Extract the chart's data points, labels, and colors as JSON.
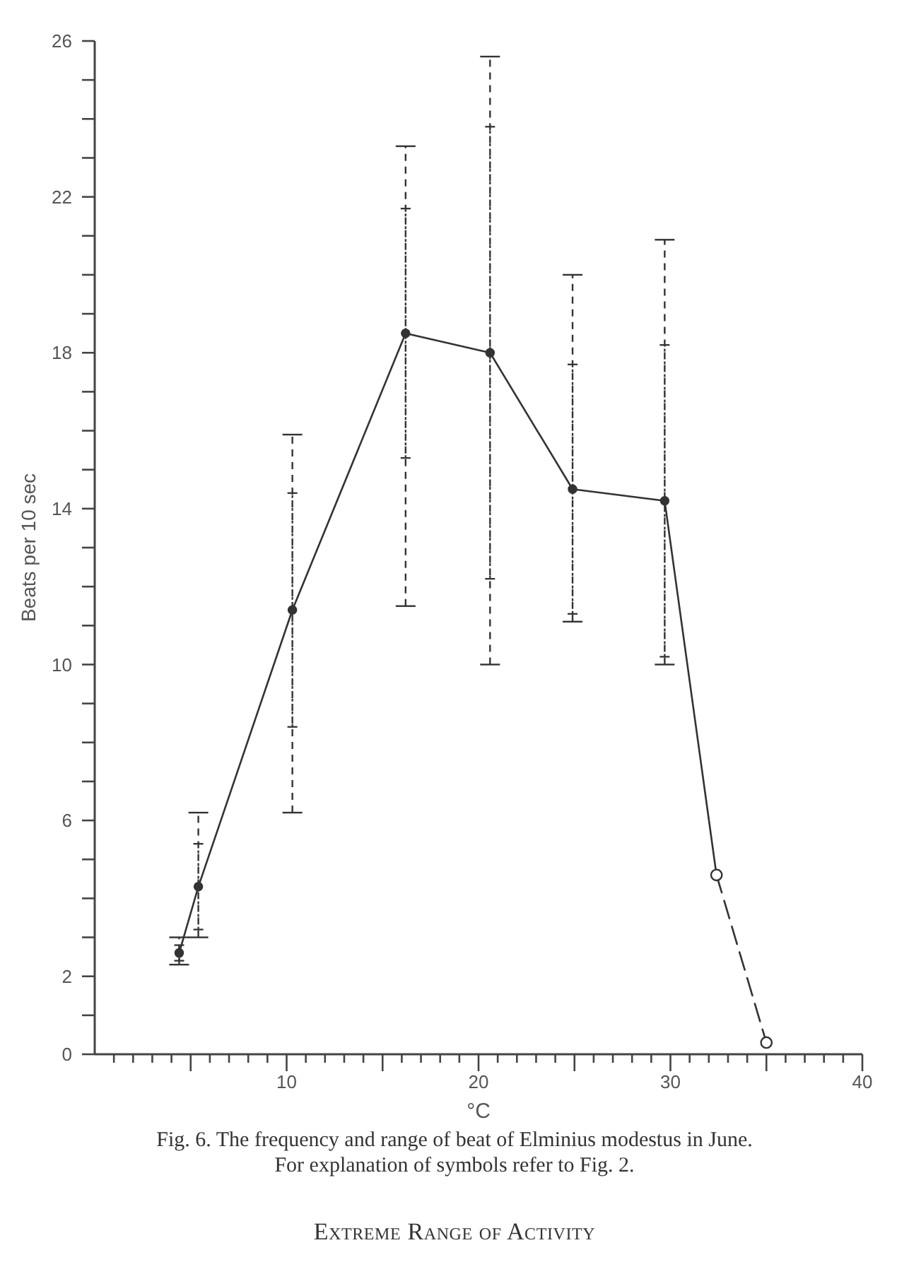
{
  "chart_data": {
    "type": "line",
    "xlabel": "°C",
    "ylabel": "Beats per 10 sec",
    "annotations": [
      "Fig. 6. The frequency and range of beat of Elminius modestus in June.",
      "For explanation of symbols refer to Fig. 2.",
      "Extreme Range of Activity"
    ],
    "xlim": [
      0,
      40
    ],
    "xticks": [
      {
        "value": 1,
        "label": null
      },
      {
        "value": 2,
        "label": null
      },
      {
        "value": 3,
        "label": null
      },
      {
        "value": 4,
        "label": null
      },
      {
        "value": 5,
        "label": null
      },
      {
        "value": 6,
        "label": null
      },
      {
        "value": 7,
        "label": null
      },
      {
        "value": 8,
        "label": null
      },
      {
        "value": 9,
        "label": null
      },
      10,
      {
        "value": 11,
        "label": null
      },
      {
        "value": 12,
        "label": null
      },
      {
        "value": 13,
        "label": null
      },
      {
        "value": 14,
        "label": null
      },
      {
        "value": 15,
        "label": null
      },
      {
        "value": 16,
        "label": null
      },
      {
        "value": 17,
        "label": null
      },
      {
        "value": 18,
        "label": null
      },
      {
        "value": 19,
        "label": null
      },
      20,
      {
        "value": 21,
        "label": null
      },
      {
        "value": 22,
        "label": null
      },
      {
        "value": 23,
        "label": null
      },
      {
        "value": 24,
        "label": null
      },
      {
        "value": 25,
        "label": null
      },
      {
        "value": 26,
        "label": null
      },
      {
        "value": 27,
        "label": null
      },
      {
        "value": 28,
        "label": null
      },
      {
        "value": 29,
        "label": null
      },
      30,
      {
        "value": 31,
        "label": null
      },
      {
        "value": 32,
        "label": null
      },
      {
        "value": 33,
        "label": null
      },
      {
        "value": 34,
        "label": null
      },
      {
        "value": 35,
        "label": null
      },
      {
        "value": 36,
        "label": null
      },
      {
        "value": 37,
        "label": null
      },
      {
        "value": 38,
        "label": null
      },
      {
        "value": 39,
        "label": null
      },
      40
    ],
    "ylim": [
      0,
      26
    ],
    "yticks": [
      0,
      {
        "value": 1,
        "label": null
      },
      2,
      {
        "value": 3,
        "label": null
      },
      {
        "value": 4,
        "label": null
      },
      {
        "value": 5,
        "label": null
      },
      6,
      {
        "value": 7,
        "label": null
      },
      {
        "value": 8,
        "label": null
      },
      {
        "value": 9,
        "label": null
      },
      10,
      {
        "value": 11,
        "label": null
      },
      {
        "value": 12,
        "label": null
      },
      {
        "value": 13,
        "label": null
      },
      14,
      {
        "value": 15,
        "label": null
      },
      {
        "value": 16,
        "label": null
      },
      {
        "value": 17,
        "label": null
      },
      18,
      {
        "value": 19,
        "label": null
      },
      {
        "value": 20,
        "label": null
      },
      {
        "value": 21,
        "label": null
      },
      22,
      {
        "value": 23,
        "label": null
      },
      {
        "value": 24,
        "label": null
      },
      {
        "value": 25,
        "label": null
      },
      26
    ],
    "series": [
      {
        "type": "scatter",
        "color": "#333333",
        "x": [
          4.4,
          5.4,
          10.3,
          16.2,
          20.6,
          24.9,
          29.7
        ],
        "values": [
          2.6,
          4.3,
          11.4,
          18.5,
          18.0,
          14.5,
          14.2
        ],
        "errors": [
          0.2,
          1.1,
          3.0,
          3.2,
          5.8,
          3.2,
          4.0
        ],
        "marker": "circle"
      },
      {
        "color": "#333333",
        "x": [
          29.7,
          32.4
        ],
        "values": [
          14.2,
          4.6
        ],
        "line_style": "solid"
      },
      {
        "color": "#333333",
        "x": [
          4.4,
          5.4,
          10.3,
          16.2,
          20.6,
          24.9,
          29.7
        ],
        "values": [
          2.6,
          4.3,
          11.4,
          18.5,
          18.0,
          14.5,
          14.2
        ],
        "errors": [
          [
            2.3,
            3.0
          ],
          [
            3.0,
            6.2
          ],
          [
            6.2,
            15.9
          ],
          [
            11.5,
            23.3
          ],
          [
            10.0,
            25.6
          ],
          [
            11.1,
            20.0
          ],
          [
            10.0,
            20.9
          ]
        ],
        "line_style": "solid"
      },
      {
        "color": "#333333",
        "x": [
          32.4,
          35
        ],
        "values": [
          4.6,
          0.3
        ],
        "marker": "circle",
        "line_style": "dashed"
      }
    ]
  }
}
